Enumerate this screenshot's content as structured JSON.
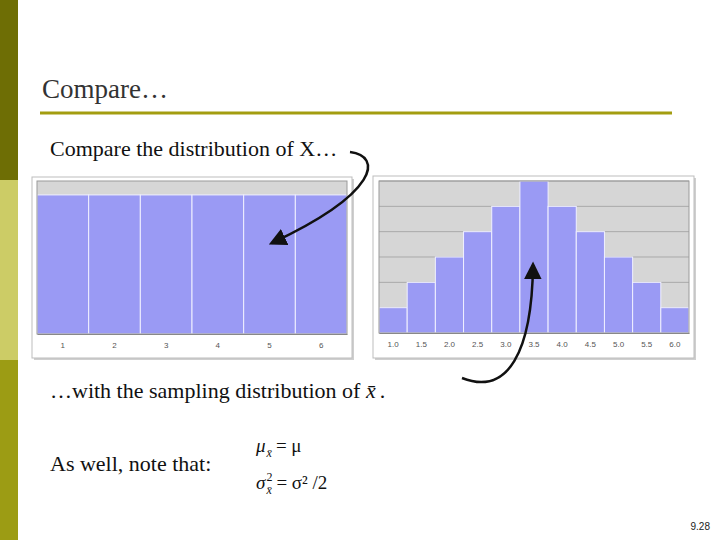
{
  "slide": {
    "title": "Compare…",
    "line1": "Compare the distribution of X…",
    "line2": {
      "text": "…with the sampling distribution of",
      "symbol": "x̄",
      "end": "."
    },
    "line3": "As well, note that:",
    "formulas": [
      {
        "symbol": "μ",
        "subscript": "x̄",
        "rest": "= μ"
      },
      {
        "symbol": "σ",
        "superscript": "2",
        "subscript": "x̄",
        "rest": "= σ² /2"
      }
    ],
    "page": "9.28"
  },
  "chart_data": [
    {
      "type": "bar",
      "categories": [
        "1",
        "2",
        "3",
        "4",
        "5",
        "6"
      ],
      "values": [
        1,
        1,
        1,
        1,
        1,
        1
      ],
      "color": "#9a9af4",
      "ylim": [
        0,
        1.1
      ],
      "grid": false,
      "tick_labels": "x"
    },
    {
      "type": "bar",
      "categories": [
        "1.0",
        "1.5",
        "2.0",
        "2.5",
        "3.0",
        "3.5",
        "4.0",
        "4.5",
        "5.0",
        "5.5",
        "6.0"
      ],
      "values": [
        1,
        2,
        3,
        4,
        5,
        6,
        5,
        4,
        3,
        2,
        1
      ],
      "color": "#9a9af4",
      "ylim": [
        0,
        6
      ],
      "yticks": [
        0,
        1,
        2,
        3,
        4,
        5,
        6
      ],
      "grid": true,
      "tick_labels": "x"
    }
  ]
}
